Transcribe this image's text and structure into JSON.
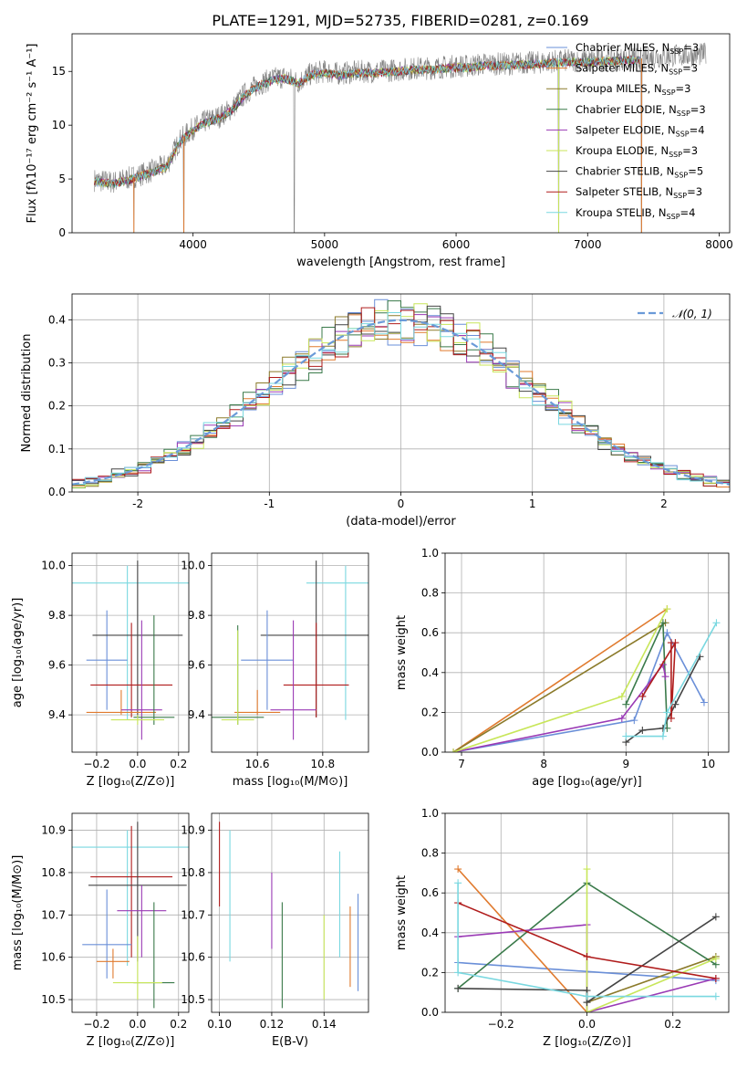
{
  "figure_title": "PLATE=1291, MJD=52735, FIBERID=0281, z=0.169",
  "colors": {
    "Chabrier MILES": "#6a8fd8",
    "Salpeter MILES": "#e07a2e",
    "Kroupa MILES": "#8b7a2a",
    "Chabrier ELODIE": "#3a7a4a",
    "Salpeter ELODIE": "#9a3ab5",
    "Kroupa ELODIE": "#c8e65a",
    "Chabrier STELIB": "#444444",
    "Salpeter STELIB": "#b01c1c",
    "Kroupa STELIB": "#7ad8e0",
    "gaussian": "#6a9ad8",
    "data_spectrum": "#808080"
  },
  "chart_data": [
    {
      "id": "spectrum",
      "type": "line",
      "xlabel": "wavelength [Angstrom, rest frame]",
      "ylabel": "Flux [fλ10⁻¹⁷ erg cm⁻² s⁻¹ A⁻¹]",
      "xlim": [
        3080,
        8080
      ],
      "ylim": [
        0,
        18.5
      ],
      "xticks": [
        4000,
        5000,
        6000,
        7000,
        8000
      ],
      "yticks": [
        0,
        5,
        10,
        15
      ],
      "legend_position": "top-right",
      "legend": [
        {
          "name": "Chabrier MILES",
          "label": "Chabrier MILES, N",
          "sub": "SSP",
          "tail": "=3"
        },
        {
          "name": "Salpeter MILES",
          "label": "Salpeter MILES, N",
          "sub": "SSP",
          "tail": "=3"
        },
        {
          "name": "Kroupa MILES",
          "label": "Kroupa MILES, N",
          "sub": "SSP",
          "tail": "=3"
        },
        {
          "name": "Chabrier ELODIE",
          "label": "Chabrier ELODIE, N",
          "sub": "SSP",
          "tail": "=3"
        },
        {
          "name": "Salpeter ELODIE",
          "label": "Salpeter ELODIE, N",
          "sub": "SSP",
          "tail": "=4"
        },
        {
          "name": "Kroupa ELODIE",
          "label": "Kroupa ELODIE, N",
          "sub": "SSP",
          "tail": "=3"
        },
        {
          "name": "Chabrier STELIB",
          "label": "Chabrier STELIB, N",
          "sub": "SSP",
          "tail": "=5"
        },
        {
          "name": "Salpeter STELIB",
          "label": "Salpeter STELIB, N",
          "sub": "SSP",
          "tail": "=3"
        },
        {
          "name": "Kroupa STELIB",
          "label": "Kroupa STELIB, N",
          "sub": "SSP",
          "tail": "=4"
        }
      ],
      "continuum": [
        [
          3250,
          4.9
        ],
        [
          3400,
          4.7
        ],
        [
          3550,
          5.2
        ],
        [
          3700,
          5.8
        ],
        [
          3800,
          6.3
        ],
        [
          3900,
          8.6
        ],
        [
          4000,
          9.7
        ],
        [
          4100,
          10.4
        ],
        [
          4200,
          10.8
        ],
        [
          4300,
          11.6
        ],
        [
          4400,
          13.0
        ],
        [
          4500,
          13.8
        ],
        [
          4600,
          14.3
        ],
        [
          4700,
          14.5
        ],
        [
          4800,
          14.0
        ],
        [
          4900,
          14.8
        ],
        [
          5000,
          15.0
        ],
        [
          5100,
          14.8
        ],
        [
          5200,
          14.9
        ],
        [
          5300,
          15.0
        ],
        [
          5400,
          15.0
        ],
        [
          5500,
          15.1
        ],
        [
          5600,
          15.2
        ],
        [
          5700,
          15.3
        ],
        [
          5800,
          15.3
        ],
        [
          5900,
          15.4
        ],
        [
          6000,
          15.5
        ],
        [
          6100,
          15.5
        ],
        [
          6200,
          15.7
        ],
        [
          6300,
          15.7
        ],
        [
          6400,
          15.7
        ],
        [
          6500,
          15.8
        ],
        [
          6600,
          15.8
        ],
        [
          6700,
          15.9
        ],
        [
          6800,
          16.0
        ],
        [
          6900,
          16.0
        ],
        [
          7000,
          16.0
        ],
        [
          7100,
          16.1
        ],
        [
          7200,
          16.1
        ],
        [
          7300,
          16.2
        ],
        [
          7400,
          16.2
        ],
        [
          7500,
          16.3
        ],
        [
          7600,
          16.4
        ],
        [
          7700,
          16.5
        ],
        [
          7800,
          16.5
        ],
        [
          7900,
          16.6
        ]
      ],
      "dropouts": [
        [
          3550,
          0
        ],
        [
          3930,
          0
        ],
        [
          4770,
          0
        ],
        [
          6780,
          0
        ],
        [
          7410,
          0
        ]
      ],
      "model_range": [
        3250,
        7400
      ]
    },
    {
      "id": "residuals",
      "type": "histogram",
      "xlabel": "(data-model)/error",
      "ylabel": "Normed distribution",
      "xlim": [
        -2.5,
        2.5
      ],
      "ylim": [
        0,
        0.46
      ],
      "xticks": [
        -2,
        -1,
        0,
        1,
        2
      ],
      "yticks": [
        0.0,
        0.1,
        0.2,
        0.3,
        0.4
      ],
      "grid": true,
      "legend_position": "top-right",
      "legend": [
        {
          "name": "gaussian",
          "label": "𝒩(0, 1)"
        }
      ],
      "bin_width": 0.1
    },
    {
      "id": "age_vs_Z",
      "type": "errorbar",
      "xlabel": "Z [log₁₀(Z/Z⊙)]",
      "ylabel": "age  [log₁₀(age/yr)]",
      "xlim": [
        -0.32,
        0.25
      ],
      "ylim": [
        9.25,
        10.05
      ],
      "xticks": [
        -0.2,
        0.0,
        0.2
      ],
      "yticks": [
        9.4,
        9.6,
        9.8,
        10.0
      ],
      "tick_labels_x": [
        "−0.2",
        "0.0",
        "0.2"
      ],
      "grid": true,
      "points": [
        {
          "name": "Kroupa STELIB",
          "x": -0.05,
          "xerr": 0.3,
          "y": 9.93,
          "ylo": 9.38,
          "yhi": 10.0
        },
        {
          "name": "Chabrier MILES",
          "x": -0.15,
          "xerr": 0.1,
          "y": 9.62,
          "ylo": 9.42,
          "yhi": 9.82
        },
        {
          "name": "Chabrier STELIB",
          "x": 0.0,
          "xerr": 0.22,
          "y": 9.72,
          "ylo": 9.39,
          "yhi": 10.02
        },
        {
          "name": "Salpeter STELIB",
          "x": -0.03,
          "xerr": 0.2,
          "y": 9.52,
          "ylo": 9.39,
          "yhi": 9.77
        },
        {
          "name": "Salpeter MILES",
          "x": -0.08,
          "xerr": 0.17,
          "y": 9.41,
          "ylo": 9.4,
          "yhi": 9.5
        },
        {
          "name": "Salpeter ELODIE",
          "x": 0.02,
          "xerr": 0.1,
          "y": 9.42,
          "ylo": 9.3,
          "yhi": 9.78
        },
        {
          "name": "Chabrier ELODIE",
          "x": 0.08,
          "xerr": 0.1,
          "y": 9.39,
          "ylo": 9.36,
          "yhi": 9.8
        },
        {
          "name": "Kroupa ELODIE",
          "x": 0.0,
          "xerr": 0.13,
          "y": 9.38,
          "ylo": 9.36,
          "yhi": 9.4
        }
      ]
    },
    {
      "id": "age_vs_mass",
      "type": "errorbar",
      "xlabel": "mass [log₁₀(M/M⊙)]",
      "ylabel": "",
      "xlim": [
        10.46,
        10.94
      ],
      "ylim": [
        9.25,
        10.05
      ],
      "xticks": [
        10.6,
        10.8
      ],
      "yticks": [
        9.4,
        9.6,
        9.8,
        10.0
      ],
      "grid": true,
      "points": [
        {
          "name": "Kroupa STELIB",
          "x": 10.87,
          "xerr": 0.12,
          "y": 9.93,
          "ylo": 9.38,
          "yhi": 10.0
        },
        {
          "name": "Chabrier STELIB",
          "x": 10.78,
          "xerr": 0.17,
          "y": 9.72,
          "ylo": 9.39,
          "yhi": 10.02
        },
        {
          "name": "Chabrier MILES",
          "x": 10.63,
          "xerr": 0.08,
          "y": 9.62,
          "ylo": 9.42,
          "yhi": 9.82
        },
        {
          "name": "Salpeter STELIB",
          "x": 10.78,
          "xerr": 0.1,
          "y": 9.52,
          "ylo": 9.39,
          "yhi": 9.77
        },
        {
          "name": "Salpeter MILES",
          "x": 10.6,
          "xerr": 0.07,
          "y": 9.41,
          "ylo": 9.4,
          "yhi": 9.5
        },
        {
          "name": "Salpeter ELODIE",
          "x": 10.71,
          "xerr": 0.07,
          "y": 9.42,
          "ylo": 9.3,
          "yhi": 9.78
        },
        {
          "name": "Chabrier ELODIE",
          "x": 10.54,
          "xerr": 0.08,
          "y": 9.39,
          "ylo": 9.36,
          "yhi": 9.76
        },
        {
          "name": "Kroupa ELODIE",
          "x": 10.54,
          "xerr": 0.05,
          "y": 9.38,
          "ylo": 9.36,
          "yhi": 9.74
        }
      ]
    },
    {
      "id": "weight_vs_age",
      "type": "line",
      "xlabel": "age  [log₁₀(age/yr)]",
      "ylabel": "mass weight",
      "xlim": [
        6.8,
        10.25
      ],
      "ylim": [
        0,
        1.0
      ],
      "xticks": [
        7,
        8,
        9,
        10
      ],
      "yticks": [
        0.0,
        0.2,
        0.4,
        0.6,
        0.8,
        1.0
      ],
      "grid": true,
      "series": [
        {
          "name": "Chabrier MILES",
          "x": [
            6.9,
            9.1,
            9.5,
            9.95
          ],
          "y": [
            0.0,
            0.16,
            0.6,
            0.25
          ]
        },
        {
          "name": "Salpeter MILES",
          "x": [
            6.9,
            9.5
          ],
          "y": [
            0.0,
            0.72
          ]
        },
        {
          "name": "Kroupa MILES",
          "x": [
            6.9,
            9.48
          ],
          "y": [
            0.0,
            0.65
          ]
        },
        {
          "name": "Chabrier ELODIE",
          "x": [
            9.0,
            9.45,
            9.5
          ],
          "y": [
            0.24,
            0.65,
            0.12
          ]
        },
        {
          "name": "Salpeter ELODIE",
          "x": [
            6.9,
            8.95,
            9.45,
            9.48
          ],
          "y": [
            0.0,
            0.17,
            0.44,
            0.38
          ]
        },
        {
          "name": "Kroupa ELODIE",
          "x": [
            6.9,
            8.95,
            9.5
          ],
          "y": [
            0.0,
            0.28,
            0.72
          ]
        },
        {
          "name": "Chabrier STELIB",
          "x": [
            9.0,
            9.2,
            9.45,
            9.6,
            9.9
          ],
          "y": [
            0.05,
            0.11,
            0.12,
            0.24,
            0.48
          ]
        },
        {
          "name": "Salpeter STELIB",
          "x": [
            9.2,
            9.6,
            9.55,
            9.55
          ],
          "y": [
            0.28,
            0.55,
            0.17,
            0.55
          ]
        },
        {
          "name": "Kroupa STELIB",
          "x": [
            9.0,
            9.45,
            9.5,
            10.1
          ],
          "y": [
            0.08,
            0.08,
            0.2,
            0.65
          ]
        }
      ]
    },
    {
      "id": "mass_vs_Z",
      "type": "errorbar",
      "xlabel": "Z [log₁₀(Z/Z⊙)]",
      "ylabel": "mass [log₁₀(M/M⊙)]",
      "xlim": [
        -0.32,
        0.25
      ],
      "ylim": [
        10.47,
        10.94
      ],
      "xticks": [
        -0.2,
        0.0,
        0.2
      ],
      "yticks": [
        10.5,
        10.6,
        10.7,
        10.8,
        10.9
      ],
      "tick_labels_x": [
        "−0.2",
        "0.0",
        "0.2"
      ],
      "grid": true,
      "points": [
        {
          "name": "Kroupa STELIB",
          "x": -0.05,
          "xerr": 0.3,
          "y": 10.86,
          "ylo": 10.58,
          "yhi": 10.9
        },
        {
          "name": "Salpeter STELIB",
          "x": -0.03,
          "xerr": 0.2,
          "y": 10.79,
          "ylo": 10.6,
          "yhi": 10.91
        },
        {
          "name": "Chabrier STELIB",
          "x": 0.0,
          "xerr": 0.24,
          "y": 10.77,
          "ylo": 10.59,
          "yhi": 10.92
        },
        {
          "name": "Salpeter ELODIE",
          "x": 0.02,
          "xerr": 0.12,
          "y": 10.71,
          "ylo": 10.6,
          "yhi": 10.77
        },
        {
          "name": "Chabrier MILES",
          "x": -0.15,
          "xerr": 0.12,
          "y": 10.63,
          "ylo": 10.55,
          "yhi": 10.76
        },
        {
          "name": "Salpeter MILES",
          "x": -0.12,
          "xerr": 0.08,
          "y": 10.59,
          "ylo": 10.55,
          "yhi": 10.62
        },
        {
          "name": "Chabrier ELODIE",
          "x": 0.08,
          "xerr": 0.1,
          "y": 10.54,
          "ylo": 10.48,
          "yhi": 10.73
        },
        {
          "name": "Kroupa ELODIE",
          "x": 0.0,
          "xerr": 0.12,
          "y": 10.54,
          "ylo": 10.5,
          "yhi": 10.65
        }
      ]
    },
    {
      "id": "mass_vs_EBV",
      "type": "errorbar",
      "xlabel": "E(B-V)",
      "ylabel": "",
      "xlim": [
        0.097,
        0.157
      ],
      "ylim": [
        10.47,
        10.94
      ],
      "xticks": [
        0.1,
        0.12,
        0.14
      ],
      "yticks": [
        10.5,
        10.6,
        10.7,
        10.8,
        10.9
      ],
      "grid": true,
      "points": [
        {
          "name": "Salpeter STELIB",
          "x": 0.1,
          "xerr": 0,
          "y": 10.8,
          "ylo": 10.72,
          "yhi": 10.92
        },
        {
          "name": "Kroupa STELIB",
          "x": 0.104,
          "xerr": 0,
          "y": 10.76,
          "ylo": 10.59,
          "yhi": 10.9
        },
        {
          "name": "Salpeter ELODIE",
          "x": 0.12,
          "xerr": 0,
          "y": 10.7,
          "ylo": 10.62,
          "yhi": 10.8
        },
        {
          "name": "Chabrier ELODIE",
          "x": 0.124,
          "xerr": 0,
          "y": 10.6,
          "ylo": 10.48,
          "yhi": 10.73
        },
        {
          "name": "Kroupa ELODIE",
          "x": 0.14,
          "xerr": 0,
          "y": 10.6,
          "ylo": 10.5,
          "yhi": 10.7
        },
        {
          "name": "Salpeter MILES",
          "x": 0.15,
          "xerr": 0,
          "y": 10.62,
          "ylo": 10.53,
          "yhi": 10.72
        },
        {
          "name": "Chabrier MILES",
          "x": 0.153,
          "xerr": 0,
          "y": 10.64,
          "ylo": 10.52,
          "yhi": 10.75
        },
        {
          "name": "Kroupa STELIB",
          "x": 0.146,
          "xerr": 0,
          "y": 10.72,
          "ylo": 10.6,
          "yhi": 10.85
        }
      ]
    },
    {
      "id": "weight_vs_Z",
      "type": "line",
      "xlabel": "Z [log₁₀(Z/Z⊙)]",
      "ylabel": "mass weight",
      "xlim": [
        -0.33,
        0.33
      ],
      "ylim": [
        0,
        1.0
      ],
      "xticks": [
        -0.2,
        0.0,
        0.2
      ],
      "yticks": [
        0.0,
        0.2,
        0.4,
        0.6,
        0.8,
        1.0
      ],
      "tick_labels_x": [
        "−0.2",
        "0.0",
        "0.2"
      ],
      "grid": true,
      "series": [
        {
          "name": "Chabrier MILES",
          "x": [
            -0.3,
            0.3
          ],
          "y": [
            0.25,
            0.16
          ]
        },
        {
          "name": "Salpeter MILES",
          "x": [
            -0.3,
            0.0
          ],
          "y": [
            0.72,
            0.0
          ]
        },
        {
          "name": "Kroupa MILES",
          "x": [
            0.0,
            0.3
          ],
          "y": [
            0.05,
            0.28
          ]
        },
        {
          "name": "Chabrier ELODIE",
          "x": [
            -0.3,
            0.0,
            0.3
          ],
          "y": [
            0.12,
            0.65,
            0.24
          ]
        },
        {
          "name": "Salpeter ELODIE",
          "x": [
            -0.3,
            0.0,
            0.0,
            0.3
          ],
          "y": [
            0.38,
            0.44,
            0.0,
            0.17
          ]
        },
        {
          "name": "Kroupa ELODIE",
          "x": [
            0.0,
            0.0,
            0.3
          ],
          "y": [
            0.72,
            0.0,
            0.27
          ]
        },
        {
          "name": "Chabrier STELIB",
          "x": [
            -0.3,
            0.0,
            0.0,
            0.3
          ],
          "y": [
            0.12,
            0.11,
            0.05,
            0.48
          ]
        },
        {
          "name": "Salpeter STELIB",
          "x": [
            -0.3,
            0.0,
            0.3
          ],
          "y": [
            0.55,
            0.28,
            0.17
          ]
        },
        {
          "name": "Kroupa STELIB",
          "x": [
            -0.3,
            -0.3,
            0.0,
            0.3
          ],
          "y": [
            0.65,
            0.2,
            0.08,
            0.08
          ]
        }
      ]
    }
  ]
}
